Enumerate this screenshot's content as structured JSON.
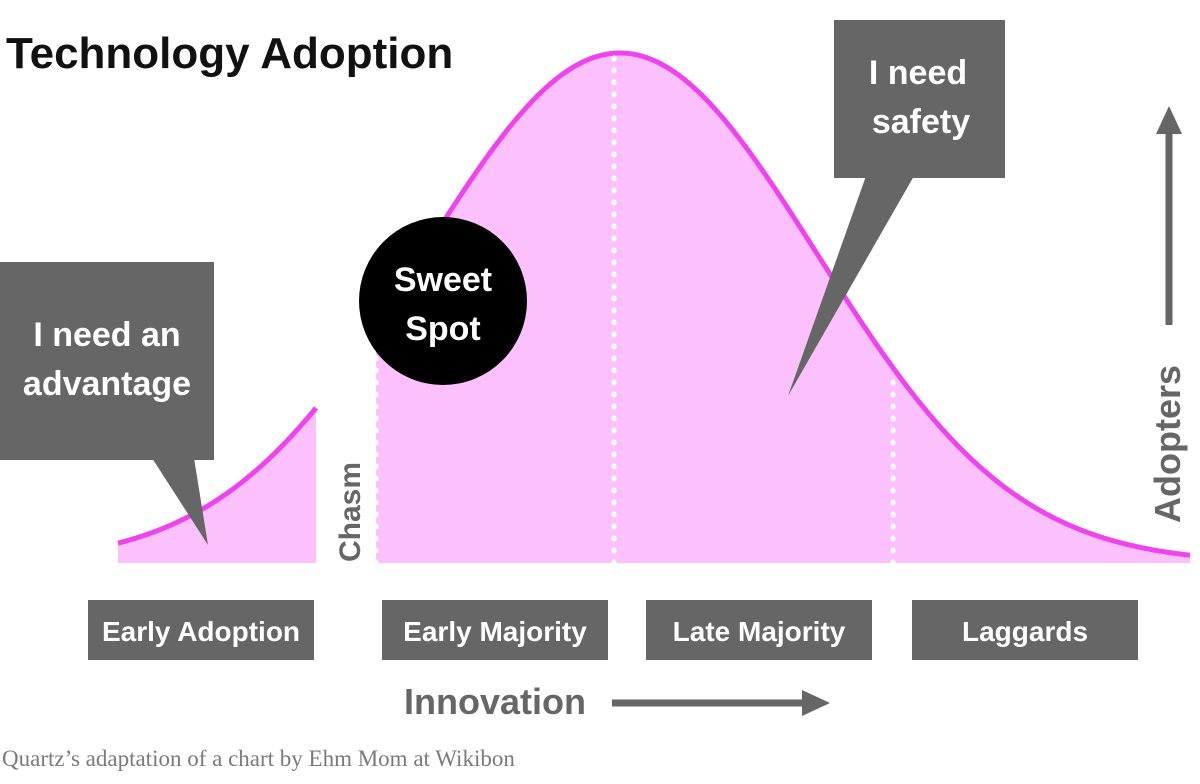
{
  "chart_data": {
    "type": "area",
    "title": "Technology Adoption",
    "distribution": "normal",
    "segments": [
      "Early Adoption",
      "Early Majority",
      "Late Majority",
      "Laggards"
    ],
    "gap_label": "Chasm",
    "callouts": {
      "left": "I need an advantage",
      "right": "I need safety",
      "center": "Sweet Spot"
    },
    "xlabel": "Innovation",
    "ylabel": "Adopters",
    "grid": false,
    "colors": {
      "curve": "#ee44ee",
      "fill": "#fcc0fc",
      "callout": "#666666",
      "spot": "#000000",
      "segment_box": "#666666"
    }
  },
  "title": "Technology Adoption",
  "bubbles": {
    "left_line1": "I need an",
    "left_line2": "advantage",
    "right_line1": "I need",
    "right_line2": "safety"
  },
  "sweet_spot": {
    "line1": "Sweet",
    "line2": "Spot"
  },
  "chasm": "Chasm",
  "segments": {
    "s1": "Early Adoption",
    "s2": "Early Majority",
    "s3": "Late Majority",
    "s4": "Laggards"
  },
  "axes": {
    "x": "Innovation",
    "y": "Adopters"
  },
  "source": "Quartz’s adaptation of a chart by Ehm Mom at Wikibon"
}
